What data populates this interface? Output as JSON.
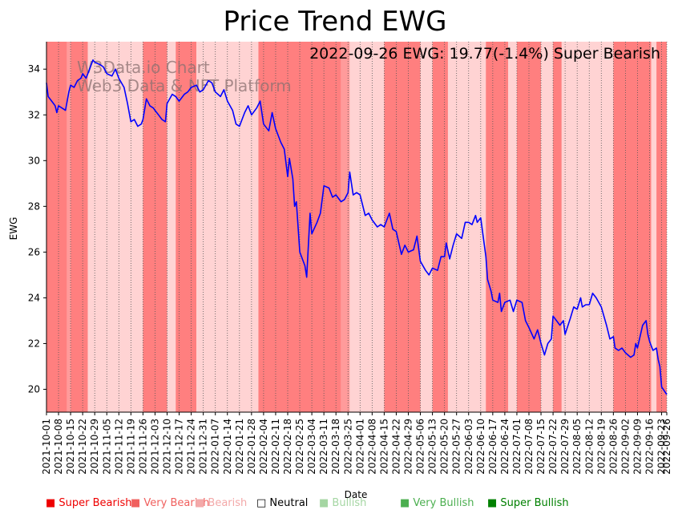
{
  "chart_data": {
    "type": "line",
    "title": "Price Trend EWG",
    "annotation": "2022-09-26 EWG: 19.77(-1.4%) Super Bearish",
    "watermark": [
      "W3Data.io Chart",
      "Web3 Data & NFT Platform"
    ],
    "xlabel": "Date",
    "ylabel": "EWG",
    "ylim": [
      19.0,
      35.2
    ],
    "yticks": [
      20,
      22,
      24,
      26,
      28,
      30,
      32,
      34
    ],
    "xlim": [
      "2021-10-01",
      "2022-09-26"
    ],
    "xticks": [
      "2021-10-01",
      "2021-10-08",
      "2021-10-15",
      "2021-10-22",
      "2021-10-29",
      "2021-11-05",
      "2021-11-12",
      "2021-11-19",
      "2021-11-26",
      "2021-12-03",
      "2021-12-10",
      "2021-12-17",
      "2021-12-24",
      "2021-12-31",
      "2022-01-07",
      "2022-01-14",
      "2022-01-21",
      "2022-01-28",
      "2022-02-04",
      "2022-02-11",
      "2022-02-18",
      "2022-02-25",
      "2022-03-04",
      "2022-03-11",
      "2022-03-18",
      "2022-03-25",
      "2022-04-01",
      "2022-04-08",
      "2022-04-15",
      "2022-04-22",
      "2022-04-29",
      "2022-05-06",
      "2022-05-13",
      "2022-05-20",
      "2022-05-27",
      "2022-06-03",
      "2022-06-10",
      "2022-06-17",
      "2022-06-24",
      "2022-07-01",
      "2022-07-08",
      "2022-07-15",
      "2022-07-22",
      "2022-07-29",
      "2022-08-05",
      "2022-08-12",
      "2022-08-19",
      "2022-08-26",
      "2022-09-02",
      "2022-09-09",
      "2022-09-16",
      "2022-09-23",
      "2022-09-26"
    ],
    "grid": "vertical dotted",
    "series": [
      {
        "color": "#0000ff",
        "points": [
          [
            "2021-10-01",
            33.4
          ],
          [
            "2021-10-02",
            32.8
          ],
          [
            "2021-10-04",
            32.6
          ],
          [
            "2021-10-06",
            32.4
          ],
          [
            "2021-10-07",
            32.1
          ],
          [
            "2021-10-08",
            32.4
          ],
          [
            "2021-10-10",
            32.3
          ],
          [
            "2021-10-12",
            32.2
          ],
          [
            "2021-10-14",
            33.0
          ],
          [
            "2021-10-15",
            33.3
          ],
          [
            "2021-10-17",
            33.2
          ],
          [
            "2021-10-19",
            33.5
          ],
          [
            "2021-10-21",
            33.6
          ],
          [
            "2021-10-22",
            33.8
          ],
          [
            "2021-10-24",
            33.6
          ],
          [
            "2021-10-26",
            34.0
          ],
          [
            "2021-10-28",
            34.4
          ],
          [
            "2021-10-29",
            34.3
          ],
          [
            "2021-11-01",
            34.2
          ],
          [
            "2021-11-03",
            34.1
          ],
          [
            "2021-11-05",
            33.8
          ],
          [
            "2021-11-08",
            33.7
          ],
          [
            "2021-11-10",
            34.0
          ],
          [
            "2021-11-12",
            33.6
          ],
          [
            "2021-11-15",
            33.2
          ],
          [
            "2021-11-17",
            32.5
          ],
          [
            "2021-11-19",
            31.7
          ],
          [
            "2021-11-21",
            31.8
          ],
          [
            "2021-11-23",
            31.5
          ],
          [
            "2021-11-25",
            31.6
          ],
          [
            "2021-11-26",
            31.8
          ],
          [
            "2021-11-28",
            32.7
          ],
          [
            "2021-11-30",
            32.4
          ],
          [
            "2021-12-02",
            32.3
          ],
          [
            "2021-12-03",
            32.2
          ],
          [
            "2021-12-05",
            32.0
          ],
          [
            "2021-12-07",
            31.8
          ],
          [
            "2021-12-09",
            31.7
          ],
          [
            "2021-12-10",
            32.5
          ],
          [
            "2021-12-13",
            32.9
          ],
          [
            "2021-12-15",
            32.8
          ],
          [
            "2021-12-17",
            32.6
          ],
          [
            "2021-12-20",
            32.9
          ],
          [
            "2021-12-22",
            33.0
          ],
          [
            "2021-12-24",
            33.2
          ],
          [
            "2021-12-27",
            33.3
          ],
          [
            "2021-12-29",
            33.0
          ],
          [
            "2021-12-31",
            33.1
          ],
          [
            "2022-01-03",
            33.5
          ],
          [
            "2022-01-05",
            33.4
          ],
          [
            "2022-01-07",
            33.0
          ],
          [
            "2022-01-10",
            32.8
          ],
          [
            "2022-01-12",
            33.1
          ],
          [
            "2022-01-14",
            32.6
          ],
          [
            "2022-01-17",
            32.2
          ],
          [
            "2022-01-19",
            31.6
          ],
          [
            "2022-01-21",
            31.5
          ],
          [
            "2022-01-24",
            32.1
          ],
          [
            "2022-01-26",
            32.4
          ],
          [
            "2022-01-28",
            32.0
          ],
          [
            "2022-01-31",
            32.3
          ],
          [
            "2022-02-02",
            32.6
          ],
          [
            "2022-02-04",
            31.6
          ],
          [
            "2022-02-07",
            31.3
          ],
          [
            "2022-02-09",
            32.1
          ],
          [
            "2022-02-11",
            31.4
          ],
          [
            "2022-02-14",
            30.8
          ],
          [
            "2022-02-16",
            30.5
          ],
          [
            "2022-02-18",
            29.3
          ],
          [
            "2022-02-19",
            30.1
          ],
          [
            "2022-02-21",
            29.2
          ],
          [
            "2022-02-22",
            28.0
          ],
          [
            "2022-02-23",
            28.2
          ],
          [
            "2022-02-25",
            26.0
          ],
          [
            "2022-02-28",
            25.4
          ],
          [
            "2022-03-01",
            24.9
          ],
          [
            "2022-03-03",
            27.7
          ],
          [
            "2022-03-04",
            26.8
          ],
          [
            "2022-03-07",
            27.3
          ],
          [
            "2022-03-09",
            27.7
          ],
          [
            "2022-03-11",
            28.9
          ],
          [
            "2022-03-14",
            28.8
          ],
          [
            "2022-03-16",
            28.4
          ],
          [
            "2022-03-18",
            28.5
          ],
          [
            "2022-03-21",
            28.2
          ],
          [
            "2022-03-23",
            28.3
          ],
          [
            "2022-03-25",
            28.6
          ],
          [
            "2022-03-26",
            29.5
          ],
          [
            "2022-03-28",
            28.5
          ],
          [
            "2022-03-30",
            28.6
          ],
          [
            "2022-04-01",
            28.5
          ],
          [
            "2022-04-04",
            27.6
          ],
          [
            "2022-04-06",
            27.7
          ],
          [
            "2022-04-08",
            27.4
          ],
          [
            "2022-04-11",
            27.1
          ],
          [
            "2022-04-13",
            27.2
          ],
          [
            "2022-04-15",
            27.1
          ],
          [
            "2022-04-18",
            27.7
          ],
          [
            "2022-04-20",
            27.0
          ],
          [
            "2022-04-22",
            26.9
          ],
          [
            "2022-04-25",
            25.9
          ],
          [
            "2022-04-27",
            26.3
          ],
          [
            "2022-04-29",
            26.0
          ],
          [
            "2022-05-02",
            26.1
          ],
          [
            "2022-05-04",
            26.7
          ],
          [
            "2022-05-06",
            25.6
          ],
          [
            "2022-05-09",
            25.2
          ],
          [
            "2022-05-11",
            25.0
          ],
          [
            "2022-05-13",
            25.3
          ],
          [
            "2022-05-16",
            25.2
          ],
          [
            "2022-05-18",
            25.8
          ],
          [
            "2022-05-20",
            25.8
          ],
          [
            "2022-05-21",
            26.4
          ],
          [
            "2022-05-23",
            25.7
          ],
          [
            "2022-05-25",
            26.3
          ],
          [
            "2022-05-27",
            26.8
          ],
          [
            "2022-05-30",
            26.6
          ],
          [
            "2022-06-01",
            27.3
          ],
          [
            "2022-06-03",
            27.3
          ],
          [
            "2022-06-05",
            27.2
          ],
          [
            "2022-06-07",
            27.6
          ],
          [
            "2022-06-08",
            27.3
          ],
          [
            "2022-06-10",
            27.5
          ],
          [
            "2022-06-13",
            25.8
          ],
          [
            "2022-06-14",
            24.8
          ],
          [
            "2022-06-16",
            24.3
          ],
          [
            "2022-06-17",
            23.9
          ],
          [
            "2022-06-20",
            23.8
          ],
          [
            "2022-06-21",
            24.2
          ],
          [
            "2022-06-22",
            23.4
          ],
          [
            "2022-06-24",
            23.8
          ],
          [
            "2022-06-27",
            23.9
          ],
          [
            "2022-06-29",
            23.4
          ],
          [
            "2022-07-01",
            23.9
          ],
          [
            "2022-07-04",
            23.8
          ],
          [
            "2022-07-06",
            23.0
          ],
          [
            "2022-07-08",
            22.7
          ],
          [
            "2022-07-11",
            22.2
          ],
          [
            "2022-07-13",
            22.6
          ],
          [
            "2022-07-15",
            22.0
          ],
          [
            "2022-07-17",
            21.5
          ],
          [
            "2022-07-19",
            22.0
          ],
          [
            "2022-07-21",
            22.2
          ],
          [
            "2022-07-22",
            23.2
          ],
          [
            "2022-07-24",
            23.0
          ],
          [
            "2022-07-26",
            22.8
          ],
          [
            "2022-07-28",
            23.0
          ],
          [
            "2022-07-29",
            22.4
          ],
          [
            "2022-08-01",
            23.1
          ],
          [
            "2022-08-03",
            23.6
          ],
          [
            "2022-08-05",
            23.5
          ],
          [
            "2022-08-07",
            24.0
          ],
          [
            "2022-08-08",
            23.6
          ],
          [
            "2022-08-10",
            23.7
          ],
          [
            "2022-08-12",
            23.7
          ],
          [
            "2022-08-14",
            24.2
          ],
          [
            "2022-08-16",
            24.0
          ],
          [
            "2022-08-19",
            23.6
          ],
          [
            "2022-08-22",
            22.8
          ],
          [
            "2022-08-24",
            22.2
          ],
          [
            "2022-08-26",
            22.3
          ],
          [
            "2022-08-27",
            21.8
          ],
          [
            "2022-08-29",
            21.7
          ],
          [
            "2022-08-31",
            21.8
          ],
          [
            "2022-09-02",
            21.6
          ],
          [
            "2022-09-05",
            21.4
          ],
          [
            "2022-09-07",
            21.5
          ],
          [
            "2022-09-08",
            22.0
          ],
          [
            "2022-09-09",
            21.8
          ],
          [
            "2022-09-12",
            22.8
          ],
          [
            "2022-09-14",
            23.0
          ],
          [
            "2022-09-15",
            22.4
          ],
          [
            "2022-09-16",
            22.1
          ],
          [
            "2022-09-18",
            21.7
          ],
          [
            "2022-09-20",
            21.8
          ],
          [
            "2022-09-21",
            21.3
          ],
          [
            "2022-09-22",
            21.0
          ],
          [
            "2022-09-23",
            20.1
          ],
          [
            "2022-09-26",
            19.77
          ]
        ]
      }
    ],
    "sentiment_bands": [
      [
        "2021-10-01",
        "2021-10-13",
        "super_bearish"
      ],
      [
        "2021-10-13",
        "2021-10-15",
        "very_bearish"
      ],
      [
        "2021-10-15",
        "2021-10-25",
        "super_bearish"
      ],
      [
        "2021-10-25",
        "2021-11-26",
        "bearish"
      ],
      [
        "2021-11-26",
        "2021-12-10",
        "super_bearish"
      ],
      [
        "2021-12-10",
        "2021-12-15",
        "bearish"
      ],
      [
        "2021-12-15",
        "2021-12-27",
        "super_bearish"
      ],
      [
        "2021-12-27",
        "2022-02-01",
        "bearish"
      ],
      [
        "2022-02-01",
        "2022-03-21",
        "super_bearish"
      ],
      [
        "2022-03-21",
        "2022-03-26",
        "very_bearish"
      ],
      [
        "2022-03-26",
        "2022-04-15",
        "bearish"
      ],
      [
        "2022-04-15",
        "2022-05-06",
        "super_bearish"
      ],
      [
        "2022-05-06",
        "2022-05-13",
        "bearish"
      ],
      [
        "2022-05-13",
        "2022-05-22",
        "super_bearish"
      ],
      [
        "2022-05-22",
        "2022-06-13",
        "bearish"
      ],
      [
        "2022-06-13",
        "2022-06-26",
        "super_bearish"
      ],
      [
        "2022-06-26",
        "2022-07-01",
        "bearish"
      ],
      [
        "2022-07-01",
        "2022-07-15",
        "super_bearish"
      ],
      [
        "2022-07-15",
        "2022-07-22",
        "bearish"
      ],
      [
        "2022-07-22",
        "2022-07-27",
        "super_bearish"
      ],
      [
        "2022-07-27",
        "2022-08-26",
        "bearish"
      ],
      [
        "2022-08-26",
        "2022-09-17",
        "super_bearish"
      ],
      [
        "2022-09-17",
        "2022-09-20",
        "bearish"
      ],
      [
        "2022-09-20",
        "2022-09-26",
        "super_bearish"
      ]
    ],
    "band_colors": {
      "super_bearish": "#ff7f7f",
      "very_bearish": "#ff9b9b",
      "bearish": "#ffd3d3"
    },
    "legend": [
      {
        "label": "■ Super Bearish",
        "color": "#ee0000"
      },
      {
        "label": "■ Very Bearish",
        "color": "#f0605e"
      },
      {
        "label": "■ Bearish",
        "color": "#f3a9a9"
      },
      {
        "label": "□ Neutral",
        "color": "#000000"
      },
      {
        "label": "■ Bullish",
        "color": "#a5d6a3"
      },
      {
        "label": "■ Very Bullish",
        "color": "#4caf50"
      },
      {
        "label": "■ Super Bullish",
        "color": "#008000"
      }
    ]
  }
}
